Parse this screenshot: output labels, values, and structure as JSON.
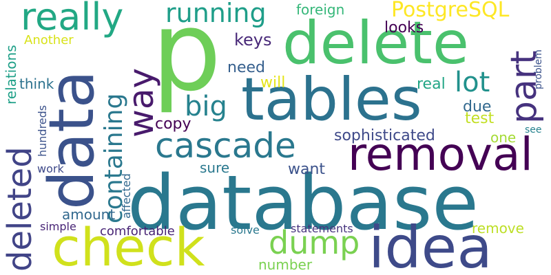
{
  "words": [
    {
      "text": "database",
      "color": "#2a788e"
    },
    {
      "text": "data",
      "color": "#3b528b"
    },
    {
      "text": "p",
      "color": "#6ece58"
    },
    {
      "text": "tables",
      "color": "#2c728e"
    },
    {
      "text": "delete",
      "color": "#4ac16d"
    },
    {
      "text": "check",
      "color": "#d0e11c"
    },
    {
      "text": "idea",
      "color": "#3e4a89"
    },
    {
      "text": "removal",
      "color": "#440154"
    },
    {
      "text": "really",
      "color": "#22a884"
    },
    {
      "text": "cascade",
      "color": "#2a788e"
    },
    {
      "text": "way",
      "color": "#481a6c"
    },
    {
      "text": "part",
      "color": "#46327e"
    },
    {
      "text": "deleted",
      "color": "#414487"
    },
    {
      "text": "dump",
      "color": "#7ad151"
    },
    {
      "text": "running",
      "color": "#1f9e89"
    },
    {
      "text": "big",
      "color": "#26828e"
    },
    {
      "text": "containing",
      "color": "#2a788e"
    },
    {
      "text": "lot",
      "color": "#21918c"
    },
    {
      "text": "PostgreSQL",
      "color": "#fde725"
    },
    {
      "text": "keys",
      "color": "#482878"
    },
    {
      "text": "need",
      "color": "#355f8d"
    },
    {
      "text": "looks",
      "color": "#440154"
    },
    {
      "text": "foreign",
      "color": "#35b779"
    },
    {
      "text": "copy",
      "color": "#440154"
    },
    {
      "text": "sophisticated",
      "color": "#3e4989"
    },
    {
      "text": "real",
      "color": "#21a585"
    },
    {
      "text": "due",
      "color": "#31688e"
    },
    {
      "text": "test",
      "color": "#c2df23"
    },
    {
      "text": "one",
      "color": "#a5db36"
    },
    {
      "text": "will",
      "color": "#e5e419"
    },
    {
      "text": "think",
      "color": "#2c728e"
    },
    {
      "text": "relations",
      "color": "#1fa088"
    },
    {
      "text": "Another",
      "color": "#d8e219"
    },
    {
      "text": "want",
      "color": "#3b528b"
    },
    {
      "text": "sure",
      "color": "#2a788e"
    },
    {
      "text": "amount",
      "color": "#31688e"
    },
    {
      "text": "comfortable",
      "color": "#482475"
    },
    {
      "text": "remove",
      "color": "#bddf26"
    },
    {
      "text": "statements",
      "color": "#46337e"
    },
    {
      "text": "solve",
      "color": "#2a788e"
    },
    {
      "text": "number",
      "color": "#7ad151"
    },
    {
      "text": "simple",
      "color": "#482576"
    },
    {
      "text": "work",
      "color": "#3e4989"
    },
    {
      "text": "hundreds",
      "color": "#3b528b"
    },
    {
      "text": "affected",
      "color": "#31688e"
    },
    {
      "text": "see",
      "color": "#26828e"
    },
    {
      "text": "problem",
      "color": "#3b528b"
    }
  ]
}
